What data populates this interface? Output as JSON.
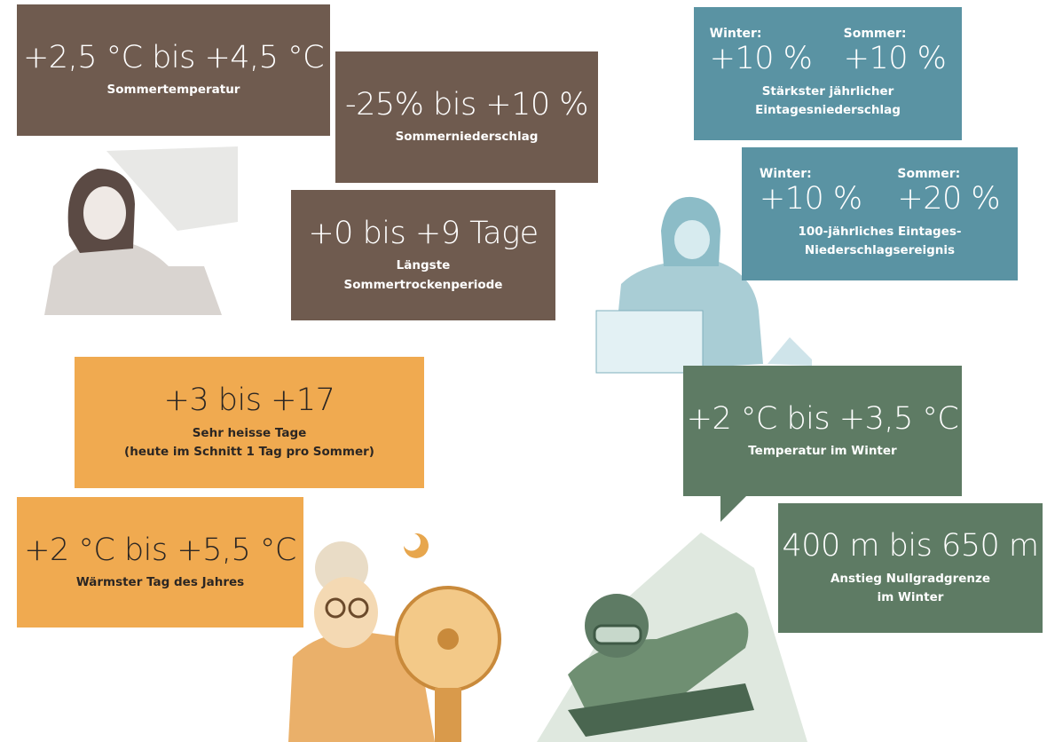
{
  "panels": [
    {
      "value": "+2,5 °C bis +4,5 °C",
      "label_lines": [
        "Sommertemperatur"
      ]
    },
    {
      "value": "-25% bis +10 %",
      "label_lines": [
        "Sommerniederschlag"
      ]
    },
    {
      "value": "+0 bis +9 Tage",
      "label_lines": [
        "Längste",
        "Sommertrockenperiode"
      ]
    },
    {
      "columns": [
        {
          "season": "Winter:",
          "value": "+10 %"
        },
        {
          "season": "Sommer:",
          "value": "+10 %"
        }
      ],
      "label_lines": [
        "Stärkster jährlicher",
        "Eintagesniederschlag"
      ]
    },
    {
      "columns": [
        {
          "season": "Winter:",
          "value": "+10 %"
        },
        {
          "season": "Sommer:",
          "value": "+20 %"
        }
      ],
      "label_lines": [
        "100-jährliches Eintages-",
        "Niederschlagsereignis"
      ]
    },
    {
      "value": "+3 bis +17",
      "label_lines": [
        "Sehr heisse Tage",
        "(heute im Schnitt 1 Tag pro Sommer)"
      ]
    },
    {
      "value": "+2 °C bis +5,5 °C",
      "label_lines": [
        "Wärmster Tag des Jahres"
      ]
    },
    {
      "value": "+2 °C bis +3,5 °C",
      "label_lines": [
        "Temperatur im Winter"
      ]
    },
    {
      "value": "400 m bis 650 m",
      "label_lines": [
        "Anstieg Nullgradgrenze",
        "im Winter"
      ]
    }
  ]
}
